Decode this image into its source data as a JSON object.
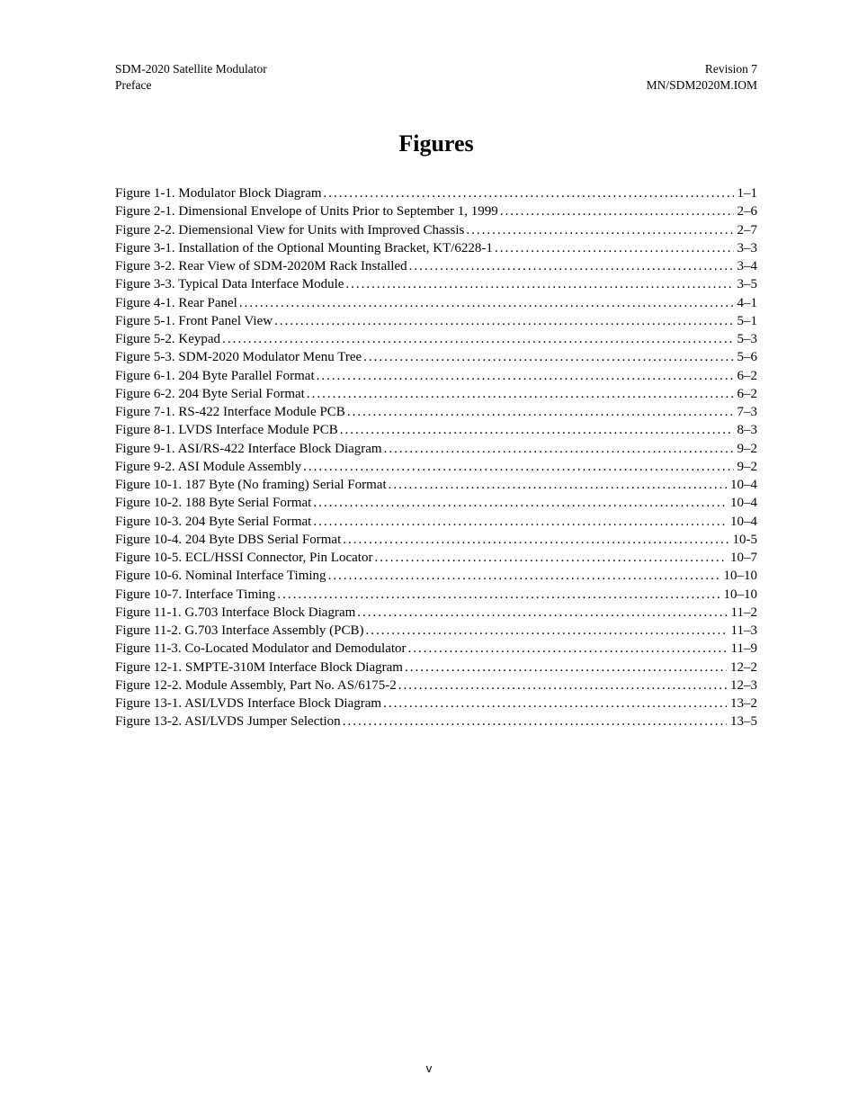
{
  "header": {
    "left_line1": "SDM-2020 Satellite Modulator",
    "left_line2": "Preface",
    "right_line1": "Revision 7",
    "right_line2": "MN/SDM2020M.IOM"
  },
  "section_title": "Figures",
  "toc": [
    {
      "label": "Figure 1-1.  Modulator Block Diagram",
      "page": "1–1"
    },
    {
      "label": "Figure 2-1.  Dimensional Envelope of Units Prior to September 1, 1999",
      "page": "2–6"
    },
    {
      "label": "Figure 2-2.  Diemensional View for Units with Improved Chassis",
      "page": "2–7"
    },
    {
      "label": "Figure 3-1.  Installation of the Optional Mounting Bracket, KT/6228-1",
      "page": "3–3"
    },
    {
      "label": "Figure 3-2.  Rear View of SDM-2020M Rack Installed",
      "page": "3–4"
    },
    {
      "label": "Figure 3-3.  Typical Data Interface Module",
      "page": "3–5"
    },
    {
      "label": "Figure 4-1.  Rear Panel",
      "page": "4–1"
    },
    {
      "label": "Figure 5-1.  Front Panel View",
      "page": "5–1"
    },
    {
      "label": "Figure 5-2.  Keypad",
      "page": "5–3"
    },
    {
      "label": "Figure 5-3.  SDM-2020 Modulator Menu Tree",
      "page": "5–6"
    },
    {
      "label": "Figure 6-1.  204 Byte Parallel Format",
      "page": "6–2"
    },
    {
      "label": "Figure 6-2.  204 Byte Serial Format",
      "page": "6–2"
    },
    {
      "label": "Figure 7-1.  RS-422 Interface Module PCB",
      "page": "7–3"
    },
    {
      "label": "Figure 8-1.  LVDS Interface Module PCB",
      "page": "8–3"
    },
    {
      "label": "Figure 9-1.  ASI/RS-422 Interface Block Diagram",
      "page": "9–2"
    },
    {
      "label": "Figure 9-2.  ASI Module Assembly",
      "page": "9–2"
    },
    {
      "label": "Figure 10-1.  187 Byte (No framing) Serial Format",
      "page": "10–4"
    },
    {
      "label": "Figure 10-2.  188 Byte Serial Format",
      "page": "10–4"
    },
    {
      "label": "Figure 10-3.  204 Byte Serial Format",
      "page": "10–4"
    },
    {
      "label": "Figure 10-4.  204 Byte DBS Serial Format",
      "page": "10-5"
    },
    {
      "label": "Figure 10-5.  ECL/HSSI Connector, Pin Locator",
      "page": "10–7"
    },
    {
      "label": "Figure 10-6.  Nominal Interface Timing",
      "page": "10–10"
    },
    {
      "label": "Figure 10-7.  Interface Timing",
      "page": "10–10"
    },
    {
      "label": "Figure 11-1.  G.703 Interface Block Diagram",
      "page": "11–2"
    },
    {
      "label": "Figure 11-2.  G.703 Interface Assembly (PCB)",
      "page": "11–3"
    },
    {
      "label": "Figure 11-3.  Co-Located Modulator and Demodulator",
      "page": "11–9"
    },
    {
      "label": "Figure 12-1.  SMPTE-310M Interface Block Diagram",
      "page": "12–2"
    },
    {
      "label": "Figure 12-2.  Module Assembly, Part No. AS/6175-2",
      "page": "12–3"
    },
    {
      "label": "Figure 13-1.  ASI/LVDS Interface Block Diagram",
      "page": "13–2"
    },
    {
      "label": "Figure 13-2.  ASI/LVDS Jumper Selection",
      "page": "13–5"
    }
  ],
  "page_number": "v"
}
